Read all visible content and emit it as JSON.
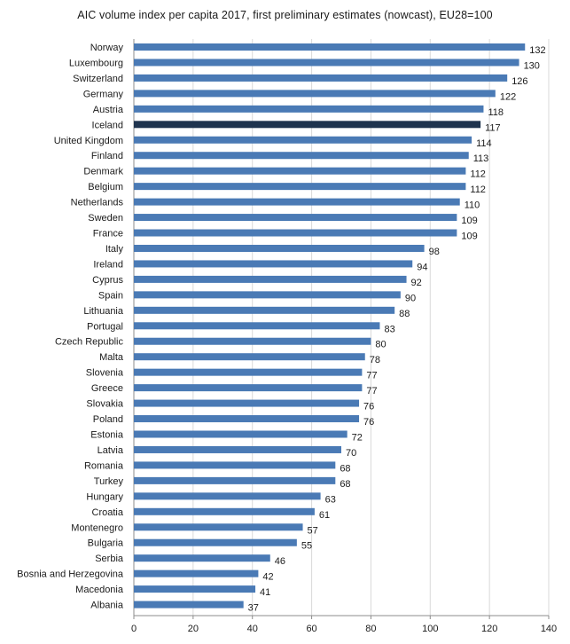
{
  "chart_data": {
    "type": "bar",
    "orientation": "horizontal",
    "title": "AIC volume index per capita 2017,  first preliminary estimates (nowcast), EU28=100",
    "xlabel": "",
    "ylabel": "",
    "xlim": [
      0,
      140
    ],
    "xticks": [
      0,
      20,
      40,
      60,
      80,
      100,
      120,
      140
    ],
    "grid": true,
    "legend": "none",
    "colors": {
      "bar": "#4a7ab5",
      "highlight": "#1f344f",
      "grid": "#d9d9d9",
      "axis": "#8c8c8c"
    },
    "highlight_category": "Iceland",
    "categories": [
      "Norway",
      "Luxembourg",
      "Switzerland",
      "Germany",
      "Austria",
      "Iceland",
      "United Kingdom",
      "Finland",
      "Denmark",
      "Belgium",
      "Netherlands",
      "Sweden",
      "France",
      "Italy",
      "Ireland",
      "Cyprus",
      "Spain",
      "Lithuania",
      "Portugal",
      "Czech Republic",
      "Malta",
      "Slovenia",
      "Greece",
      "Slovakia",
      "Poland",
      "Estonia",
      "Latvia",
      "Romania",
      "Turkey",
      "Hungary",
      "Croatia",
      "Montenegro",
      "Bulgaria",
      "Serbia",
      "Bosnia and Herzegovina",
      "Macedonia",
      "Albania"
    ],
    "values": [
      132,
      130,
      126,
      122,
      118,
      117,
      114,
      113,
      112,
      112,
      110,
      109,
      109,
      98,
      94,
      92,
      90,
      88,
      83,
      80,
      78,
      77,
      77,
      76,
      76,
      72,
      70,
      68,
      68,
      63,
      61,
      57,
      55,
      46,
      42,
      41,
      37
    ]
  }
}
